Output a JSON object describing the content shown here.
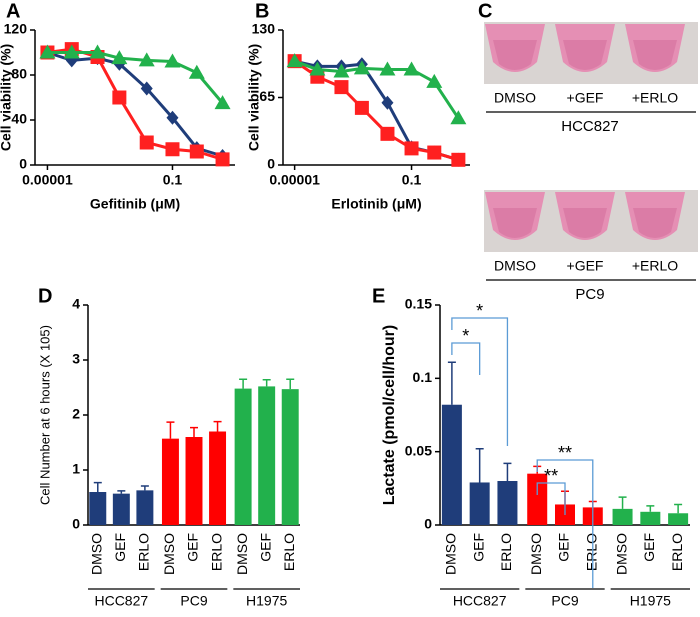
{
  "chart_data": [
    {
      "type": "line",
      "title": "A",
      "xscale": "log",
      "ylabel": "Cell viability (%)",
      "xlabel": "Gefitinib (μM)",
      "x": [
        1e-05,
        6e-05,
        0.0004,
        0.002,
        0.015,
        0.1,
        0.6,
        4
      ],
      "xlim": [
        4e-06,
        10
      ],
      "xticks": [
        1e-05,
        0.1
      ],
      "ylim": [
        0,
        120
      ],
      "yticks": [
        0,
        40,
        80,
        120
      ],
      "series": [
        {
          "color": "#1f3d7a",
          "marker": "diamond",
          "values": [
            100,
            93,
            95,
            90,
            68,
            42,
            15,
            8
          ]
        },
        {
          "color": "#ff2020",
          "marker": "square",
          "values": [
            100,
            103,
            96,
            60,
            20,
            14,
            12,
            5
          ]
        },
        {
          "color": "#22b14c",
          "marker": "triangle",
          "values": [
            100,
            100,
            100,
            95,
            93,
            92,
            82,
            55
          ]
        }
      ]
    },
    {
      "type": "line",
      "title": "B",
      "xscale": "log",
      "ylabel": "Cell viability (%)",
      "xlabel": "Erlotinib (μM)",
      "x": [
        1e-05,
        6e-05,
        0.0004,
        0.002,
        0.015,
        0.1,
        0.6,
        4
      ],
      "xlim": [
        4e-06,
        10
      ],
      "xticks": [
        1e-05,
        0.1
      ],
      "ylim": [
        0,
        130
      ],
      "yticks": [
        0,
        65,
        130
      ],
      "series": [
        {
          "color": "#1f3d7a",
          "marker": "diamond",
          "values": [
            100,
            95,
            95,
            97,
            60,
            17,
            12,
            5
          ]
        },
        {
          "color": "#ff2020",
          "marker": "square",
          "values": [
            100,
            85,
            75,
            55,
            30,
            16,
            12,
            5
          ]
        },
        {
          "color": "#22b14c",
          "marker": "triangle",
          "values": [
            100,
            92,
            90,
            93,
            92,
            92,
            80,
            45
          ]
        }
      ]
    },
    {
      "type": "bar",
      "title": "D",
      "ylabel": "Cell Number at 6 hours (X 105)",
      "categories": [
        "DMSO",
        "GEF",
        "ERLO",
        "DMSO",
        "GEF",
        "ERLO",
        "DMSO",
        "GEF",
        "ERLO"
      ],
      "groups": [
        "HCC827",
        "PC9",
        "H1975"
      ],
      "colors": [
        "#1f3d7a",
        "#ff0000",
        "#22b14c"
      ],
      "values": [
        0.6,
        0.57,
        0.63,
        1.57,
        1.6,
        1.7,
        2.48,
        2.52,
        2.47
      ],
      "errors": [
        0.17,
        0.05,
        0.08,
        0.3,
        0.17,
        0.18,
        0.17,
        0.12,
        0.18
      ],
      "ylim": [
        0,
        4
      ],
      "yticks": [
        0,
        1,
        2,
        3,
        4
      ]
    },
    {
      "type": "bar",
      "title": "E",
      "ylabel": "Lactate (pmol/cell/hour)",
      "categories": [
        "DMSO",
        "GEF",
        "ERLO",
        "DMSO",
        "GEF",
        "ERLO",
        "DMSO",
        "GEF",
        "ERLO"
      ],
      "groups": [
        "HCC827",
        "PC9",
        "H1975"
      ],
      "colors": [
        "#1f3d7a",
        "#ff0000",
        "#22b14c"
      ],
      "values": [
        0.082,
        0.029,
        0.03,
        0.035,
        0.014,
        0.012,
        0.011,
        0.009,
        0.008
      ],
      "errors": [
        0.029,
        0.023,
        0.012,
        0.005,
        0.009,
        0.004,
        0.008,
        0.004,
        0.006
      ],
      "ylim": [
        0,
        0.15
      ],
      "yticks": [
        0,
        0.05,
        0.1,
        0.15
      ],
      "annotations": [
        "*",
        "*",
        "**",
        "**"
      ]
    }
  ],
  "image_panel": {
    "title": "C",
    "rows": [
      {
        "labels": [
          "DMSO",
          "+GEF",
          "+ERLO"
        ],
        "name": "HCC827"
      },
      {
        "labels": [
          "DMSO",
          "+GEF",
          "+ERLO"
        ],
        "name": "PC9"
      }
    ]
  }
}
